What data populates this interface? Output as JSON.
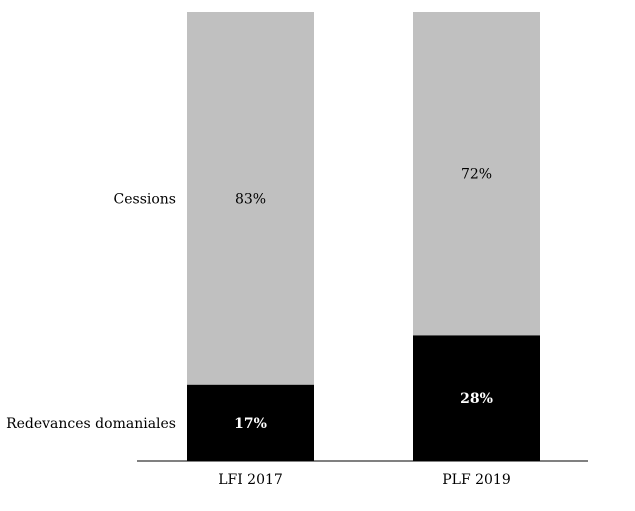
{
  "chart_data": {
    "type": "bar",
    "stacked": true,
    "normalized": true,
    "categories": [
      "LFI 2017",
      "PLF 2019"
    ],
    "series": [
      {
        "name": "Redevances domaniales",
        "values": [
          17,
          28
        ],
        "labels": [
          "17%",
          "28%"
        ],
        "color": "#000000",
        "label_color": "#ffffff",
        "label_weight": "bold"
      },
      {
        "name": "Cessions",
        "values": [
          83,
          72
        ],
        "labels": [
          "83%",
          "72%"
        ],
        "color": "#c0c0c0",
        "label_color": "#000000",
        "label_weight": "normal"
      }
    ],
    "ylim": [
      0,
      100
    ],
    "grid": false,
    "legend": "left-inline",
    "title": "",
    "xlabel": "",
    "ylabel": ""
  }
}
